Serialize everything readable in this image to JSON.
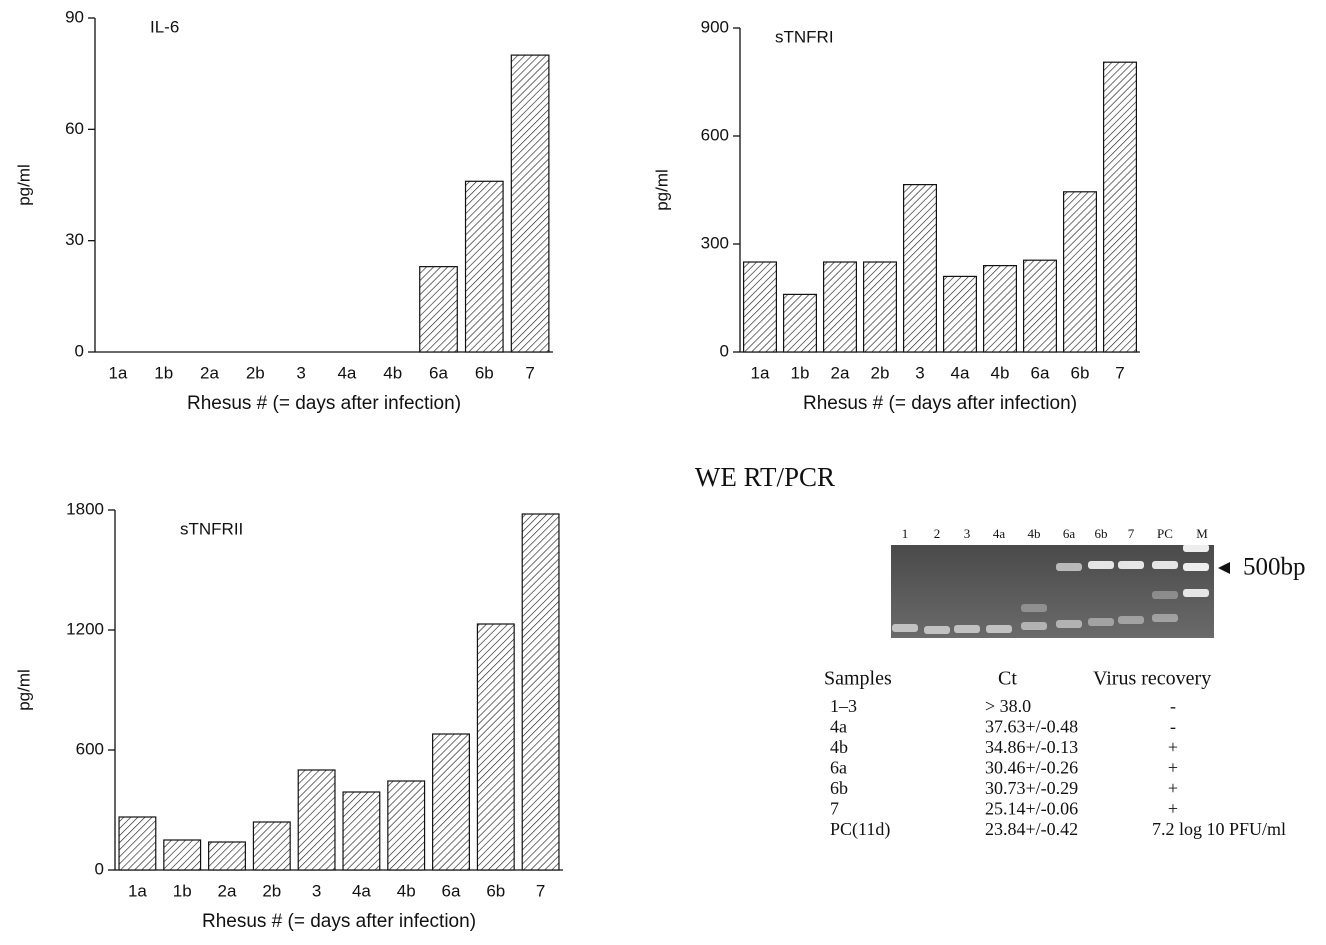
{
  "chart_data": [
    {
      "type": "bar",
      "annotation": "IL-6",
      "xlabel": "Rhesus # (= days after infection)",
      "ylabel": "pg/ml",
      "categories": [
        "1a",
        "1b",
        "2a",
        "2b",
        "3",
        "4a",
        "4b",
        "6a",
        "6b",
        "7"
      ],
      "values": [
        0,
        0,
        0,
        0,
        0,
        0,
        0,
        23,
        46,
        80
      ],
      "ylim": [
        0,
        90
      ],
      "yticks": [
        0,
        30,
        60,
        90
      ]
    },
    {
      "type": "bar",
      "annotation": "sTNFRI",
      "xlabel": "Rhesus # (= days after infection)",
      "ylabel": "pg/ml",
      "categories": [
        "1a",
        "1b",
        "2a",
        "2b",
        "3",
        "4a",
        "4b",
        "6a",
        "6b",
        "7"
      ],
      "values": [
        250,
        160,
        250,
        250,
        465,
        210,
        240,
        255,
        445,
        805
      ],
      "ylim": [
        0,
        900
      ],
      "yticks": [
        0,
        300,
        600,
        900
      ]
    },
    {
      "type": "bar",
      "annotation": "sTNFRII",
      "xlabel": "Rhesus # (= days after infection)",
      "ylabel": "pg/ml",
      "categories": [
        "1a",
        "1b",
        "2a",
        "2b",
        "3",
        "4a",
        "4b",
        "6a",
        "6b",
        "7"
      ],
      "values": [
        265,
        150,
        140,
        240,
        500,
        390,
        445,
        680,
        1230,
        1780
      ],
      "ylim": [
        0,
        1800
      ],
      "yticks": [
        0,
        600,
        1200,
        1800
      ]
    }
  ],
  "gel": {
    "title": "WE RT/PCR",
    "lanes": [
      "1",
      "2",
      "3",
      "4a",
      "4b",
      "6a",
      "6b",
      "7",
      "PC",
      "M"
    ],
    "marker": "500bp"
  },
  "table": {
    "header": [
      "Samples",
      "Ct",
      "Virus recovery"
    ],
    "rows": [
      [
        "1–3",
        "> 38.0",
        "-"
      ],
      [
        "4a",
        "37.63+/-0.48",
        "-"
      ],
      [
        "4b",
        "34.86+/-0.13",
        "+"
      ],
      [
        "6a",
        "30.46+/-0.26",
        "+"
      ],
      [
        "6b",
        "30.73+/-0.29",
        "+"
      ],
      [
        "7",
        "25.14+/-0.06",
        "+"
      ],
      [
        "PC(11d)",
        "23.84+/-0.42",
        "7.2 log 10 PFU/ml"
      ]
    ]
  }
}
